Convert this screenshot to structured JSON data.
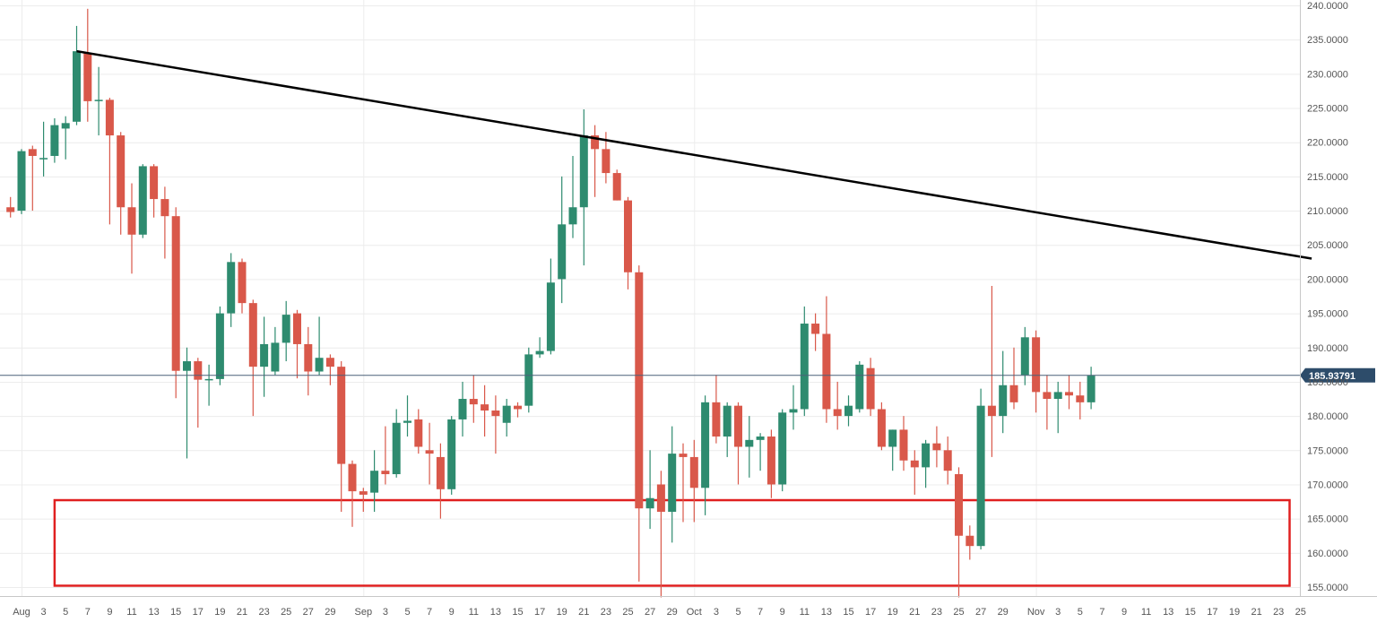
{
  "chart_data": {
    "type": "candlestick",
    "title": "",
    "xlabel": "",
    "ylabel": "",
    "ylim": [
      153.5,
      240.5
    ],
    "grid": true,
    "colors": {
      "up": "#2e8b6f",
      "down": "#d9584a",
      "trendline": "#000000",
      "zone": "#e02020",
      "price_line": "#4a6178",
      "price_label_bg": "#2d4c6a"
    },
    "y_ticks": [
      "240.0000",
      "235.0000",
      "230.0000",
      "225.0000",
      "220.0000",
      "215.0000",
      "210.0000",
      "205.0000",
      "200.0000",
      "195.0000",
      "190.0000",
      "185.0000",
      "180.0000",
      "175.0000",
      "170.0000",
      "165.0000",
      "160.0000",
      "155.0000"
    ],
    "y_tick_values": [
      240,
      235,
      230,
      225,
      220,
      215,
      210,
      205,
      200,
      195,
      190,
      185,
      180,
      175,
      170,
      165,
      160,
      155
    ],
    "x_ticks": [
      {
        "label": "Aug",
        "x": "08-01"
      },
      {
        "label": "3",
        "x": "08-03"
      },
      {
        "label": "5",
        "x": "08-05"
      },
      {
        "label": "7",
        "x": "08-07"
      },
      {
        "label": "9",
        "x": "08-09"
      },
      {
        "label": "11",
        "x": "08-11"
      },
      {
        "label": "13",
        "x": "08-13"
      },
      {
        "label": "15",
        "x": "08-15"
      },
      {
        "label": "17",
        "x": "08-17"
      },
      {
        "label": "19",
        "x": "08-19"
      },
      {
        "label": "21",
        "x": "08-21"
      },
      {
        "label": "23",
        "x": "08-23"
      },
      {
        "label": "25",
        "x": "08-25"
      },
      {
        "label": "27",
        "x": "08-27"
      },
      {
        "label": "29",
        "x": "08-29"
      },
      {
        "label": "Sep",
        "x": "09-01"
      },
      {
        "label": "3",
        "x": "09-03"
      },
      {
        "label": "5",
        "x": "09-05"
      },
      {
        "label": "7",
        "x": "09-07"
      },
      {
        "label": "9",
        "x": "09-09"
      },
      {
        "label": "11",
        "x": "09-11"
      },
      {
        "label": "13",
        "x": "09-13"
      },
      {
        "label": "15",
        "x": "09-15"
      },
      {
        "label": "17",
        "x": "09-17"
      },
      {
        "label": "19",
        "x": "09-19"
      },
      {
        "label": "21",
        "x": "09-21"
      },
      {
        "label": "23",
        "x": "09-23"
      },
      {
        "label": "25",
        "x": "09-25"
      },
      {
        "label": "27",
        "x": "09-27"
      },
      {
        "label": "29",
        "x": "09-29"
      },
      {
        "label": "Oct",
        "x": "10-01"
      },
      {
        "label": "3",
        "x": "10-03"
      },
      {
        "label": "5",
        "x": "10-05"
      },
      {
        "label": "7",
        "x": "10-07"
      },
      {
        "label": "9",
        "x": "10-09"
      },
      {
        "label": "11",
        "x": "10-11"
      },
      {
        "label": "13",
        "x": "10-13"
      },
      {
        "label": "15",
        "x": "10-15"
      },
      {
        "label": "17",
        "x": "10-17"
      },
      {
        "label": "19",
        "x": "10-19"
      },
      {
        "label": "21",
        "x": "10-21"
      },
      {
        "label": "23",
        "x": "10-23"
      },
      {
        "label": "25",
        "x": "10-25"
      },
      {
        "label": "27",
        "x": "10-27"
      },
      {
        "label": "29",
        "x": "10-29"
      },
      {
        "label": "Nov",
        "x": "11-01"
      },
      {
        "label": "3",
        "x": "11-03"
      },
      {
        "label": "5",
        "x": "11-05"
      },
      {
        "label": "7",
        "x": "11-07"
      },
      {
        "label": "9",
        "x": "11-09"
      },
      {
        "label": "11",
        "x": "11-11"
      },
      {
        "label": "13",
        "x": "11-13"
      },
      {
        "label": "15",
        "x": "11-15"
      },
      {
        "label": "17",
        "x": "11-17"
      },
      {
        "label": "19",
        "x": "11-19"
      },
      {
        "label": "21",
        "x": "11-21"
      },
      {
        "label": "23",
        "x": "11-23"
      },
      {
        "label": "25",
        "x": "11-25"
      }
    ],
    "candles": [
      {
        "x": "07-31",
        "o": 210.5,
        "h": 212.0,
        "l": 209.0,
        "c": 209.8
      },
      {
        "x": "08-01",
        "o": 210.0,
        "h": 219.0,
        "l": 209.5,
        "c": 218.7
      },
      {
        "x": "08-02",
        "o": 219.0,
        "h": 219.5,
        "l": 210.0,
        "c": 218.0
      },
      {
        "x": "08-03",
        "o": 217.5,
        "h": 223.0,
        "l": 215.0,
        "c": 217.7
      },
      {
        "x": "08-04",
        "o": 218.0,
        "h": 223.5,
        "l": 217.0,
        "c": 222.5
      },
      {
        "x": "08-05",
        "o": 222.0,
        "h": 223.8,
        "l": 217.5,
        "c": 222.8
      },
      {
        "x": "08-06",
        "o": 223.0,
        "h": 237.0,
        "l": 222.5,
        "c": 233.3
      },
      {
        "x": "08-07",
        "o": 233.0,
        "h": 239.5,
        "l": 223.0,
        "c": 226.0
      },
      {
        "x": "08-08",
        "o": 226.0,
        "h": 231.0,
        "l": 221.0,
        "c": 226.2
      },
      {
        "x": "08-09",
        "o": 226.2,
        "h": 226.5,
        "l": 208.0,
        "c": 221.0
      },
      {
        "x": "08-10",
        "o": 221.0,
        "h": 221.5,
        "l": 206.5,
        "c": 210.5
      },
      {
        "x": "08-11",
        "o": 210.5,
        "h": 214.0,
        "l": 200.8,
        "c": 206.5
      },
      {
        "x": "08-12",
        "o": 206.5,
        "h": 216.8,
        "l": 206.0,
        "c": 216.5
      },
      {
        "x": "08-13",
        "o": 216.5,
        "h": 216.8,
        "l": 209.0,
        "c": 211.7
      },
      {
        "x": "08-14",
        "o": 211.7,
        "h": 213.5,
        "l": 203.0,
        "c": 209.2
      },
      {
        "x": "08-15",
        "o": 209.2,
        "h": 210.5,
        "l": 182.6,
        "c": 186.6
      },
      {
        "x": "08-16",
        "o": 186.6,
        "h": 190.0,
        "l": 173.8,
        "c": 188.0
      },
      {
        "x": "08-17",
        "o": 188.0,
        "h": 188.5,
        "l": 178.3,
        "c": 185.3
      },
      {
        "x": "08-18",
        "o": 185.3,
        "h": 187.5,
        "l": 181.5,
        "c": 185.4
      },
      {
        "x": "08-19",
        "o": 185.4,
        "h": 196.0,
        "l": 184.5,
        "c": 195.0
      },
      {
        "x": "08-20",
        "o": 195.0,
        "h": 203.8,
        "l": 193.0,
        "c": 202.5
      },
      {
        "x": "08-21",
        "o": 202.5,
        "h": 203.0,
        "l": 195.0,
        "c": 196.5
      },
      {
        "x": "08-22",
        "o": 196.5,
        "h": 197.0,
        "l": 180.0,
        "c": 187.2
      },
      {
        "x": "08-23",
        "o": 187.2,
        "h": 194.5,
        "l": 182.8,
        "c": 190.5
      },
      {
        "x": "08-24",
        "o": 186.5,
        "h": 193.0,
        "l": 186.0,
        "c": 190.7
      },
      {
        "x": "08-25",
        "o": 190.7,
        "h": 196.8,
        "l": 188.0,
        "c": 194.8
      },
      {
        "x": "08-26",
        "o": 195.0,
        "h": 195.5,
        "l": 185.5,
        "c": 190.5
      },
      {
        "x": "08-27",
        "o": 190.5,
        "h": 193.0,
        "l": 183.0,
        "c": 186.5
      },
      {
        "x": "08-28",
        "o": 186.5,
        "h": 194.5,
        "l": 186.0,
        "c": 188.5
      },
      {
        "x": "08-29",
        "o": 188.5,
        "h": 189.0,
        "l": 184.5,
        "c": 187.2
      },
      {
        "x": "08-30",
        "o": 187.2,
        "h": 188.0,
        "l": 166.0,
        "c": 173.0
      },
      {
        "x": "08-31",
        "o": 173.0,
        "h": 173.5,
        "l": 163.8,
        "c": 169.0
      },
      {
        "x": "09-01",
        "o": 169.0,
        "h": 169.5,
        "l": 166.0,
        "c": 168.5
      },
      {
        "x": "09-02",
        "o": 168.8,
        "h": 175.0,
        "l": 166.0,
        "c": 172.0
      },
      {
        "x": "09-03",
        "o": 172.0,
        "h": 178.5,
        "l": 170.0,
        "c": 171.5
      },
      {
        "x": "09-04",
        "o": 171.5,
        "h": 181.0,
        "l": 171.0,
        "c": 179.0
      },
      {
        "x": "09-05",
        "o": 179.0,
        "h": 183.0,
        "l": 177.0,
        "c": 179.3
      },
      {
        "x": "09-06",
        "o": 179.5,
        "h": 181.0,
        "l": 174.5,
        "c": 175.5
      },
      {
        "x": "09-07",
        "o": 175.0,
        "h": 179.0,
        "l": 170.0,
        "c": 174.5
      },
      {
        "x": "09-08",
        "o": 174.0,
        "h": 176.0,
        "l": 165.0,
        "c": 169.3
      },
      {
        "x": "09-09",
        "o": 169.3,
        "h": 180.0,
        "l": 168.5,
        "c": 179.5
      },
      {
        "x": "09-10",
        "o": 179.5,
        "h": 185.0,
        "l": 177.0,
        "c": 182.5
      },
      {
        "x": "09-11",
        "o": 182.5,
        "h": 186.0,
        "l": 179.0,
        "c": 181.7
      },
      {
        "x": "09-12",
        "o": 181.7,
        "h": 184.5,
        "l": 177.0,
        "c": 180.8
      },
      {
        "x": "09-13",
        "o": 180.8,
        "h": 183.0,
        "l": 174.5,
        "c": 180.0
      },
      {
        "x": "09-14",
        "o": 179.0,
        "h": 182.5,
        "l": 177.0,
        "c": 181.5
      },
      {
        "x": "09-15",
        "o": 181.5,
        "h": 182.0,
        "l": 179.8,
        "c": 181.0
      },
      {
        "x": "09-16",
        "o": 181.5,
        "h": 190.0,
        "l": 180.5,
        "c": 189.0
      },
      {
        "x": "09-17",
        "o": 189.0,
        "h": 191.5,
        "l": 188.5,
        "c": 189.5
      },
      {
        "x": "09-18",
        "o": 189.5,
        "h": 203.0,
        "l": 189.0,
        "c": 199.5
      },
      {
        "x": "09-19",
        "o": 200.0,
        "h": 215.0,
        "l": 196.5,
        "c": 208.0
      },
      {
        "x": "09-20",
        "o": 208.0,
        "h": 218.0,
        "l": 206.0,
        "c": 210.5
      },
      {
        "x": "09-21",
        "o": 210.5,
        "h": 224.8,
        "l": 202.0,
        "c": 221.0
      },
      {
        "x": "09-22",
        "o": 221.0,
        "h": 222.5,
        "l": 212.0,
        "c": 219.0
      },
      {
        "x": "09-23",
        "o": 219.0,
        "h": 221.5,
        "l": 214.0,
        "c": 215.5
      },
      {
        "x": "09-24",
        "o": 215.5,
        "h": 216.0,
        "l": 211.5,
        "c": 211.5
      },
      {
        "x": "09-25",
        "o": 211.5,
        "h": 212.0,
        "l": 198.5,
        "c": 201.0
      },
      {
        "x": "09-26",
        "o": 201.0,
        "h": 202.0,
        "l": 155.8,
        "c": 166.5
      },
      {
        "x": "09-27",
        "o": 166.5,
        "h": 175.0,
        "l": 163.5,
        "c": 168.0
      },
      {
        "x": "09-28",
        "o": 170.0,
        "h": 172.0,
        "l": 153.5,
        "c": 166.0
      },
      {
        "x": "09-29",
        "o": 166.0,
        "h": 178.5,
        "l": 161.5,
        "c": 174.5
      },
      {
        "x": "09-30",
        "o": 174.5,
        "h": 176.0,
        "l": 164.5,
        "c": 174.0
      },
      {
        "x": "10-01",
        "o": 174.0,
        "h": 176.5,
        "l": 164.5,
        "c": 169.5
      },
      {
        "x": "10-02",
        "o": 169.5,
        "h": 183.0,
        "l": 165.5,
        "c": 182.0
      },
      {
        "x": "10-03",
        "o": 182.0,
        "h": 186.0,
        "l": 176.0,
        "c": 177.0
      },
      {
        "x": "10-04",
        "o": 177.0,
        "h": 182.0,
        "l": 174.0,
        "c": 181.5
      },
      {
        "x": "10-05",
        "o": 181.5,
        "h": 182.0,
        "l": 170.0,
        "c": 175.5
      },
      {
        "x": "10-06",
        "o": 175.5,
        "h": 180.0,
        "l": 171.0,
        "c": 176.5
      },
      {
        "x": "10-07",
        "o": 176.5,
        "h": 177.5,
        "l": 172.0,
        "c": 177.0
      },
      {
        "x": "10-08",
        "o": 177.0,
        "h": 178.0,
        "l": 168.0,
        "c": 170.0
      },
      {
        "x": "10-09",
        "o": 170.0,
        "h": 181.0,
        "l": 169.0,
        "c": 180.5
      },
      {
        "x": "10-10",
        "o": 180.5,
        "h": 184.5,
        "l": 178.0,
        "c": 181.0
      },
      {
        "x": "10-11",
        "o": 181.0,
        "h": 196.0,
        "l": 180.0,
        "c": 193.5
      },
      {
        "x": "10-12",
        "o": 193.5,
        "h": 195.0,
        "l": 189.5,
        "c": 192.0
      },
      {
        "x": "10-13",
        "o": 192.0,
        "h": 197.5,
        "l": 179.0,
        "c": 181.0
      },
      {
        "x": "10-14",
        "o": 181.0,
        "h": 185.0,
        "l": 178.0,
        "c": 180.0
      },
      {
        "x": "10-15",
        "o": 180.0,
        "h": 183.0,
        "l": 178.5,
        "c": 181.5
      },
      {
        "x": "10-16",
        "o": 181.0,
        "h": 188.0,
        "l": 180.5,
        "c": 187.5
      },
      {
        "x": "10-17",
        "o": 187.0,
        "h": 188.5,
        "l": 180.0,
        "c": 181.0
      },
      {
        "x": "10-18",
        "o": 181.0,
        "h": 182.0,
        "l": 175.0,
        "c": 175.5
      },
      {
        "x": "10-19",
        "o": 175.5,
        "h": 178.0,
        "l": 172.0,
        "c": 178.0
      },
      {
        "x": "10-20",
        "o": 178.0,
        "h": 180.0,
        "l": 172.0,
        "c": 173.5
      },
      {
        "x": "10-21",
        "o": 173.5,
        "h": 175.0,
        "l": 168.5,
        "c": 172.5
      },
      {
        "x": "10-22",
        "o": 172.5,
        "h": 176.5,
        "l": 169.5,
        "c": 176.0
      },
      {
        "x": "10-23",
        "o": 176.0,
        "h": 178.5,
        "l": 172.5,
        "c": 175.0
      },
      {
        "x": "10-24",
        "o": 175.0,
        "h": 177.0,
        "l": 170.0,
        "c": 172.0
      },
      {
        "x": "10-25",
        "o": 171.5,
        "h": 172.5,
        "l": 153.5,
        "c": 162.5
      },
      {
        "x": "10-26",
        "o": 162.5,
        "h": 164.0,
        "l": 159.0,
        "c": 161.0
      },
      {
        "x": "10-27",
        "o": 161.0,
        "h": 184.0,
        "l": 160.5,
        "c": 181.5
      },
      {
        "x": "10-28",
        "o": 181.5,
        "h": 199.0,
        "l": 174.0,
        "c": 180.0
      },
      {
        "x": "10-29",
        "o": 180.0,
        "h": 189.5,
        "l": 177.5,
        "c": 184.5
      },
      {
        "x": "10-30",
        "o": 184.5,
        "h": 190.0,
        "l": 181.0,
        "c": 182.0
      },
      {
        "x": "10-31",
        "o": 186.0,
        "h": 193.0,
        "l": 184.5,
        "c": 191.5
      },
      {
        "x": "11-01",
        "o": 191.5,
        "h": 192.5,
        "l": 180.5,
        "c": 183.5
      },
      {
        "x": "11-02",
        "o": 183.5,
        "h": 186.0,
        "l": 178.0,
        "c": 182.5
      },
      {
        "x": "11-03",
        "o": 182.5,
        "h": 185.0,
        "l": 177.5,
        "c": 183.5
      },
      {
        "x": "11-04",
        "o": 183.5,
        "h": 186.0,
        "l": 181.0,
        "c": 183.0
      },
      {
        "x": "11-05",
        "o": 183.0,
        "h": 185.0,
        "l": 179.5,
        "c": 182.0
      },
      {
        "x": "11-06",
        "o": 182.0,
        "h": 187.2,
        "l": 181.0,
        "c": 185.9
      }
    ],
    "trendline": {
      "from": {
        "x": "08-06",
        "y": 233.3
      },
      "to": {
        "x": "11-26",
        "y": 203.0
      }
    },
    "support_zone": {
      "x_from": "08-04",
      "x_to": "11-24",
      "y_low": 155.2,
      "y_high": 167.7
    },
    "last_price": 185.93791,
    "last_price_label": "185.93791"
  }
}
